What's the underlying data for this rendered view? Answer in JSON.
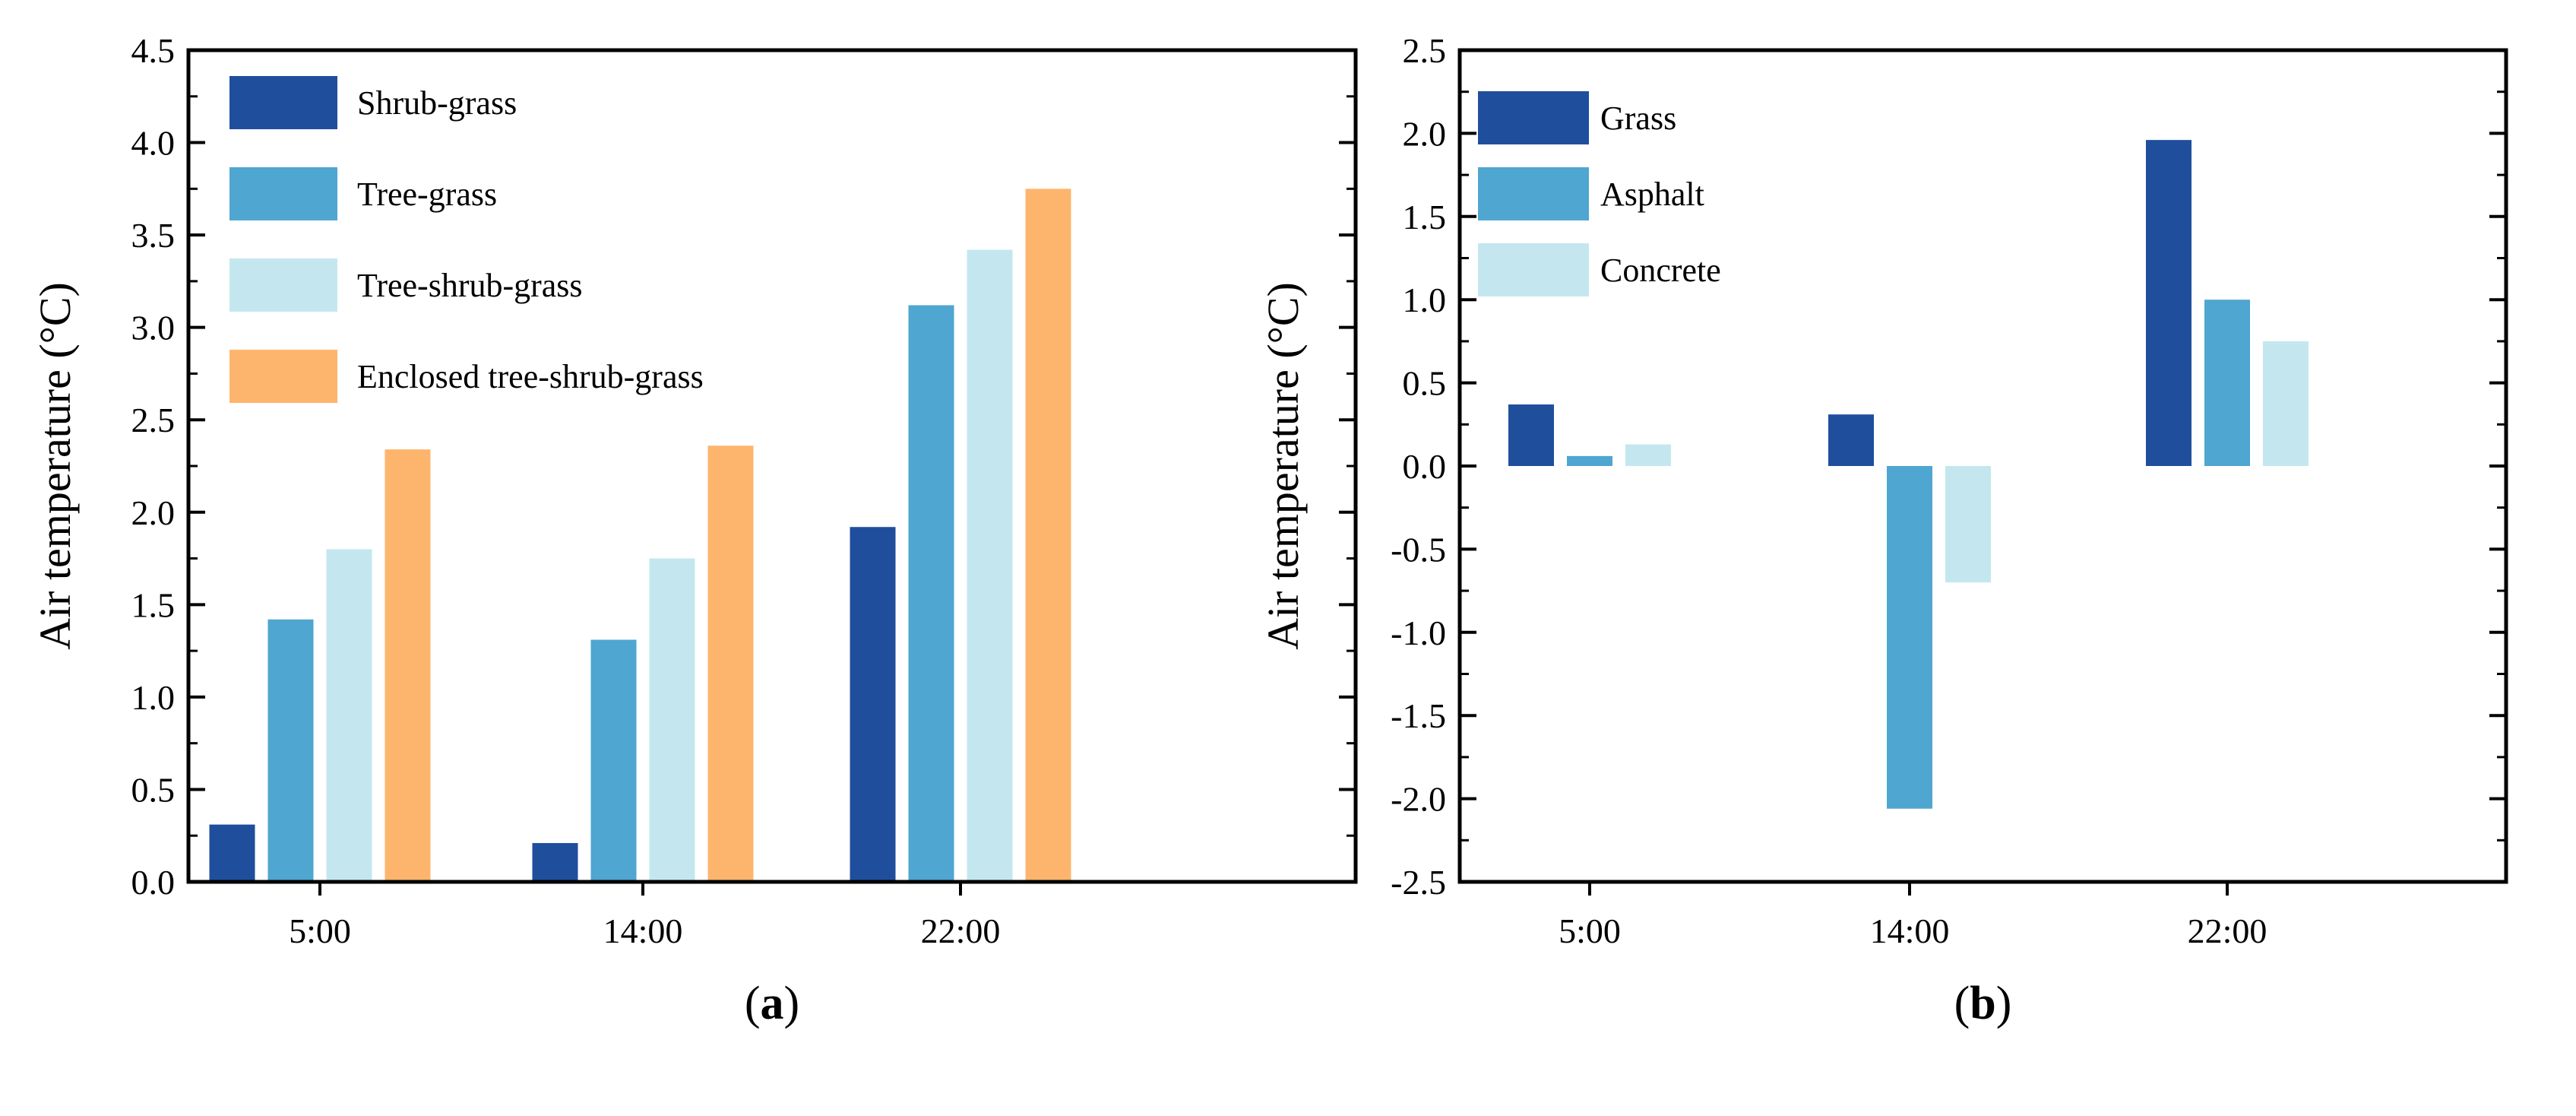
{
  "colors": {
    "series_dark_blue": "#1f4e9d",
    "series_mid_blue": "#4fa6d0",
    "series_light_blue": "#c4e7ef",
    "series_orange": "#fdb56d",
    "axis": "#000000"
  },
  "chart_data": [
    {
      "type": "bar",
      "panel": "a",
      "panel_label": {
        "open": "(",
        "letter": "a",
        "close": ")"
      },
      "title": "",
      "xlabel": "",
      "ylabel": "Air temperature (°C)",
      "ylim": [
        0.0,
        4.5
      ],
      "ytick_step": 0.5,
      "yticks": [
        "0.0",
        "0.5",
        "1.0",
        "1.5",
        "2.0",
        "2.5",
        "3.0",
        "3.5",
        "4.0",
        "4.5"
      ],
      "categories": [
        "5:00",
        "14:00",
        "22:00"
      ],
      "legend_position": "top-left",
      "series": [
        {
          "name": "Shrub-grass",
          "color": "#1f4e9d",
          "values": [
            0.31,
            0.21,
            1.92
          ]
        },
        {
          "name": "Tree-grass",
          "color": "#4fa6d0",
          "values": [
            1.42,
            1.31,
            3.12
          ]
        },
        {
          "name": "Tree-shrub-grass",
          "color": "#c4e7ef",
          "values": [
            1.8,
            1.75,
            3.42
          ]
        },
        {
          "name": "Enclosed tree-shrub-grass",
          "color": "#fdb56d",
          "values": [
            2.34,
            2.36,
            3.75
          ]
        }
      ]
    },
    {
      "type": "bar",
      "panel": "b",
      "panel_label": {
        "open": "(",
        "letter": "b",
        "close": ")"
      },
      "title": "",
      "xlabel": "",
      "ylabel": "Air temperature (°C)",
      "ylim": [
        -2.5,
        2.5
      ],
      "ytick_step": 0.5,
      "yticks": [
        "-2.5",
        "-2.0",
        "-1.5",
        "-1.0",
        "-0.5",
        "0.0",
        "0.5",
        "1.0",
        "1.5",
        "2.0",
        "2.5"
      ],
      "categories": [
        "5:00",
        "14:00",
        "22:00"
      ],
      "legend_position": "top-left",
      "series": [
        {
          "name": "Grass",
          "color": "#1f4e9d",
          "values": [
            0.37,
            0.31,
            1.96
          ]
        },
        {
          "name": "Asphalt",
          "color": "#4fa6d0",
          "values": [
            0.06,
            -2.06,
            1.0
          ]
        },
        {
          "name": "Concrete",
          "color": "#c4e7ef",
          "values": [
            0.13,
            -0.7,
            0.75
          ]
        }
      ]
    }
  ]
}
